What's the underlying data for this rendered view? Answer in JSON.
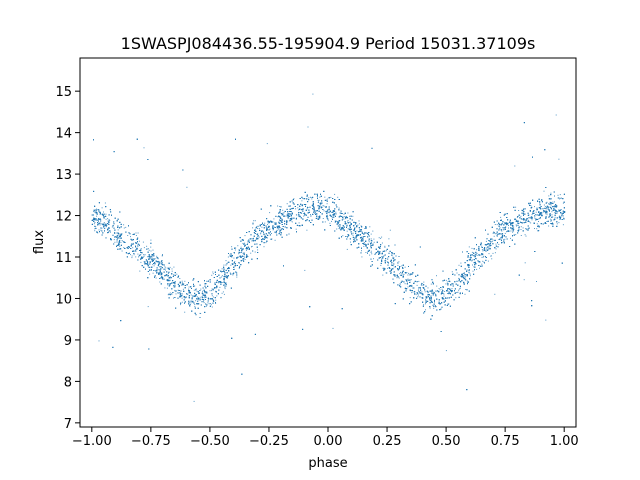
{
  "chart_data": {
    "type": "scatter",
    "title": "1SWASPJ084436.55-195904.9 Period 15031.37109s",
    "xlabel": "phase",
    "ylabel": "flux",
    "xlim": [
      -1.05,
      1.05
    ],
    "ylim": [
      6.9,
      15.8
    ],
    "x_ticks": [
      -1.0,
      -0.75,
      -0.5,
      -0.25,
      0.0,
      0.25,
      0.5,
      0.75,
      1.0
    ],
    "x_tick_labels": [
      "−1.00",
      "−0.75",
      "−0.50",
      "−0.25",
      "0.00",
      "0.25",
      "0.50",
      "0.75",
      "1.00"
    ],
    "y_ticks": [
      7,
      8,
      9,
      10,
      11,
      12,
      13,
      14,
      15
    ],
    "y_tick_labels": [
      "7",
      "8",
      "9",
      "10",
      "11",
      "12",
      "13",
      "14",
      "15"
    ],
    "grid": false,
    "legend": "none",
    "point_color": "#1f77b4",
    "series": [
      {
        "x": [
          -1.0,
          -0.95,
          -0.9,
          -0.85,
          -0.8,
          -0.75,
          -0.7,
          -0.65,
          -0.6,
          -0.55,
          -0.5,
          -0.45,
          -0.4,
          -0.35,
          -0.3,
          -0.25,
          -0.2,
          -0.15,
          -0.1,
          -0.05,
          0.0,
          0.05,
          0.1,
          0.15,
          0.2,
          0.25,
          0.3,
          0.35,
          0.4,
          0.45,
          0.5,
          0.55,
          0.6,
          0.65,
          0.7,
          0.75,
          0.8,
          0.85,
          0.9,
          0.95,
          1.0
        ],
        "y": [
          12.0,
          11.85,
          11.6,
          11.35,
          11.15,
          10.9,
          10.6,
          10.35,
          10.1,
          10.0,
          10.15,
          10.45,
          10.85,
          11.2,
          11.5,
          11.75,
          11.9,
          12.05,
          12.15,
          12.2,
          12.1,
          11.9,
          11.7,
          11.45,
          11.2,
          10.95,
          10.65,
          10.35,
          10.1,
          10.0,
          10.1,
          10.4,
          10.8,
          11.15,
          11.45,
          11.7,
          11.85,
          12.0,
          12.1,
          12.15,
          12.1
        ]
      }
    ]
  }
}
